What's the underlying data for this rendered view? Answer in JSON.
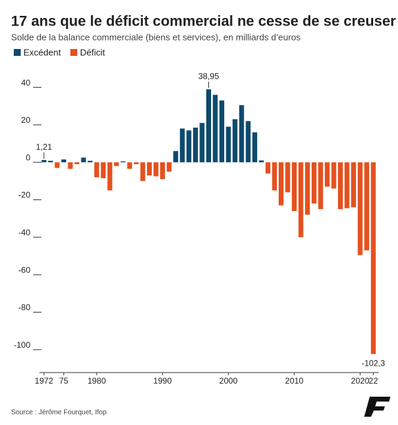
{
  "chart_data": {
    "type": "bar",
    "title": "17 ans que le déficit commercial ne cesse de se creuser",
    "subtitle": "Solde de la balance commerciale (biens et services), en milliards d’euros",
    "source": "Source : Jérôme Fourquet, Ifop",
    "x": [
      1972,
      1973,
      1974,
      1975,
      1976,
      1977,
      1978,
      1979,
      1980,
      1981,
      1982,
      1983,
      1984,
      1985,
      1986,
      1987,
      1988,
      1989,
      1990,
      1991,
      1992,
      1993,
      1994,
      1995,
      1996,
      1997,
      1998,
      1999,
      2000,
      2001,
      2002,
      2003,
      2004,
      2005,
      2006,
      2007,
      2008,
      2009,
      2010,
      2011,
      2012,
      2013,
      2014,
      2015,
      2016,
      2017,
      2018,
      2019,
      2020,
      2021,
      2022
    ],
    "series": [
      {
        "name": "Excédent",
        "color": "#0d4a6e",
        "values": [
          1.21,
          0.8,
          null,
          1.5,
          null,
          null,
          2.5,
          0.8,
          null,
          null,
          null,
          null,
          0.5,
          null,
          null,
          null,
          null,
          null,
          null,
          null,
          6,
          18,
          17,
          18.5,
          21,
          38.95,
          36,
          33,
          19,
          23,
          30.5,
          22,
          16,
          1,
          null,
          null,
          null,
          null,
          null,
          null,
          null,
          null,
          null,
          null,
          null,
          null,
          null,
          null,
          null,
          null,
          null
        ],
        "value_labels": [
          "1,21",
          null,
          null,
          null,
          null,
          null,
          null,
          null,
          null,
          null,
          null,
          null,
          null,
          null,
          null,
          null,
          null,
          null,
          null,
          null,
          null,
          null,
          null,
          null,
          null,
          "38,95",
          null,
          null,
          null,
          null,
          null,
          null,
          null,
          null,
          null,
          null,
          null,
          null,
          null,
          null,
          null,
          null,
          null,
          null,
          null,
          null,
          null,
          null,
          null,
          null,
          null
        ]
      },
      {
        "name": "Déficit",
        "color": "#e4511f",
        "values": [
          null,
          null,
          -3,
          null,
          -3.5,
          -1,
          null,
          null,
          -8,
          -8.5,
          -15,
          -2,
          null,
          -3.5,
          -1,
          -10,
          -7,
          -7.5,
          -9,
          -5,
          null,
          null,
          null,
          null,
          null,
          null,
          null,
          null,
          null,
          null,
          null,
          null,
          null,
          null,
          -6,
          -15,
          -23,
          -16,
          -26,
          -40,
          -28,
          -22,
          -25,
          -13,
          -14,
          -25,
          -24.5,
          -24,
          -49.5,
          -47,
          -102.3
        ],
        "value_labels": [
          null,
          null,
          null,
          null,
          null,
          null,
          null,
          null,
          null,
          null,
          null,
          null,
          null,
          null,
          null,
          null,
          null,
          null,
          null,
          null,
          null,
          null,
          null,
          null,
          null,
          null,
          null,
          null,
          null,
          null,
          null,
          null,
          null,
          null,
          null,
          null,
          null,
          null,
          null,
          null,
          null,
          null,
          null,
          null,
          null,
          null,
          null,
          null,
          null,
          null,
          "-102,3"
        ]
      }
    ],
    "xlim": [
      1971.5,
      2022.5
    ],
    "xticks": [
      {
        "value": 1972,
        "label": "1972"
      },
      {
        "value": 1975,
        "label": "75"
      },
      1980,
      1990,
      2000,
      2010,
      2020,
      {
        "value": 2022,
        "label": "22"
      }
    ],
    "ylim": [
      -110,
      45
    ],
    "yticks": [
      40,
      20,
      0,
      -20,
      -40,
      -60,
      -80,
      -100
    ],
    "grid": false
  }
}
